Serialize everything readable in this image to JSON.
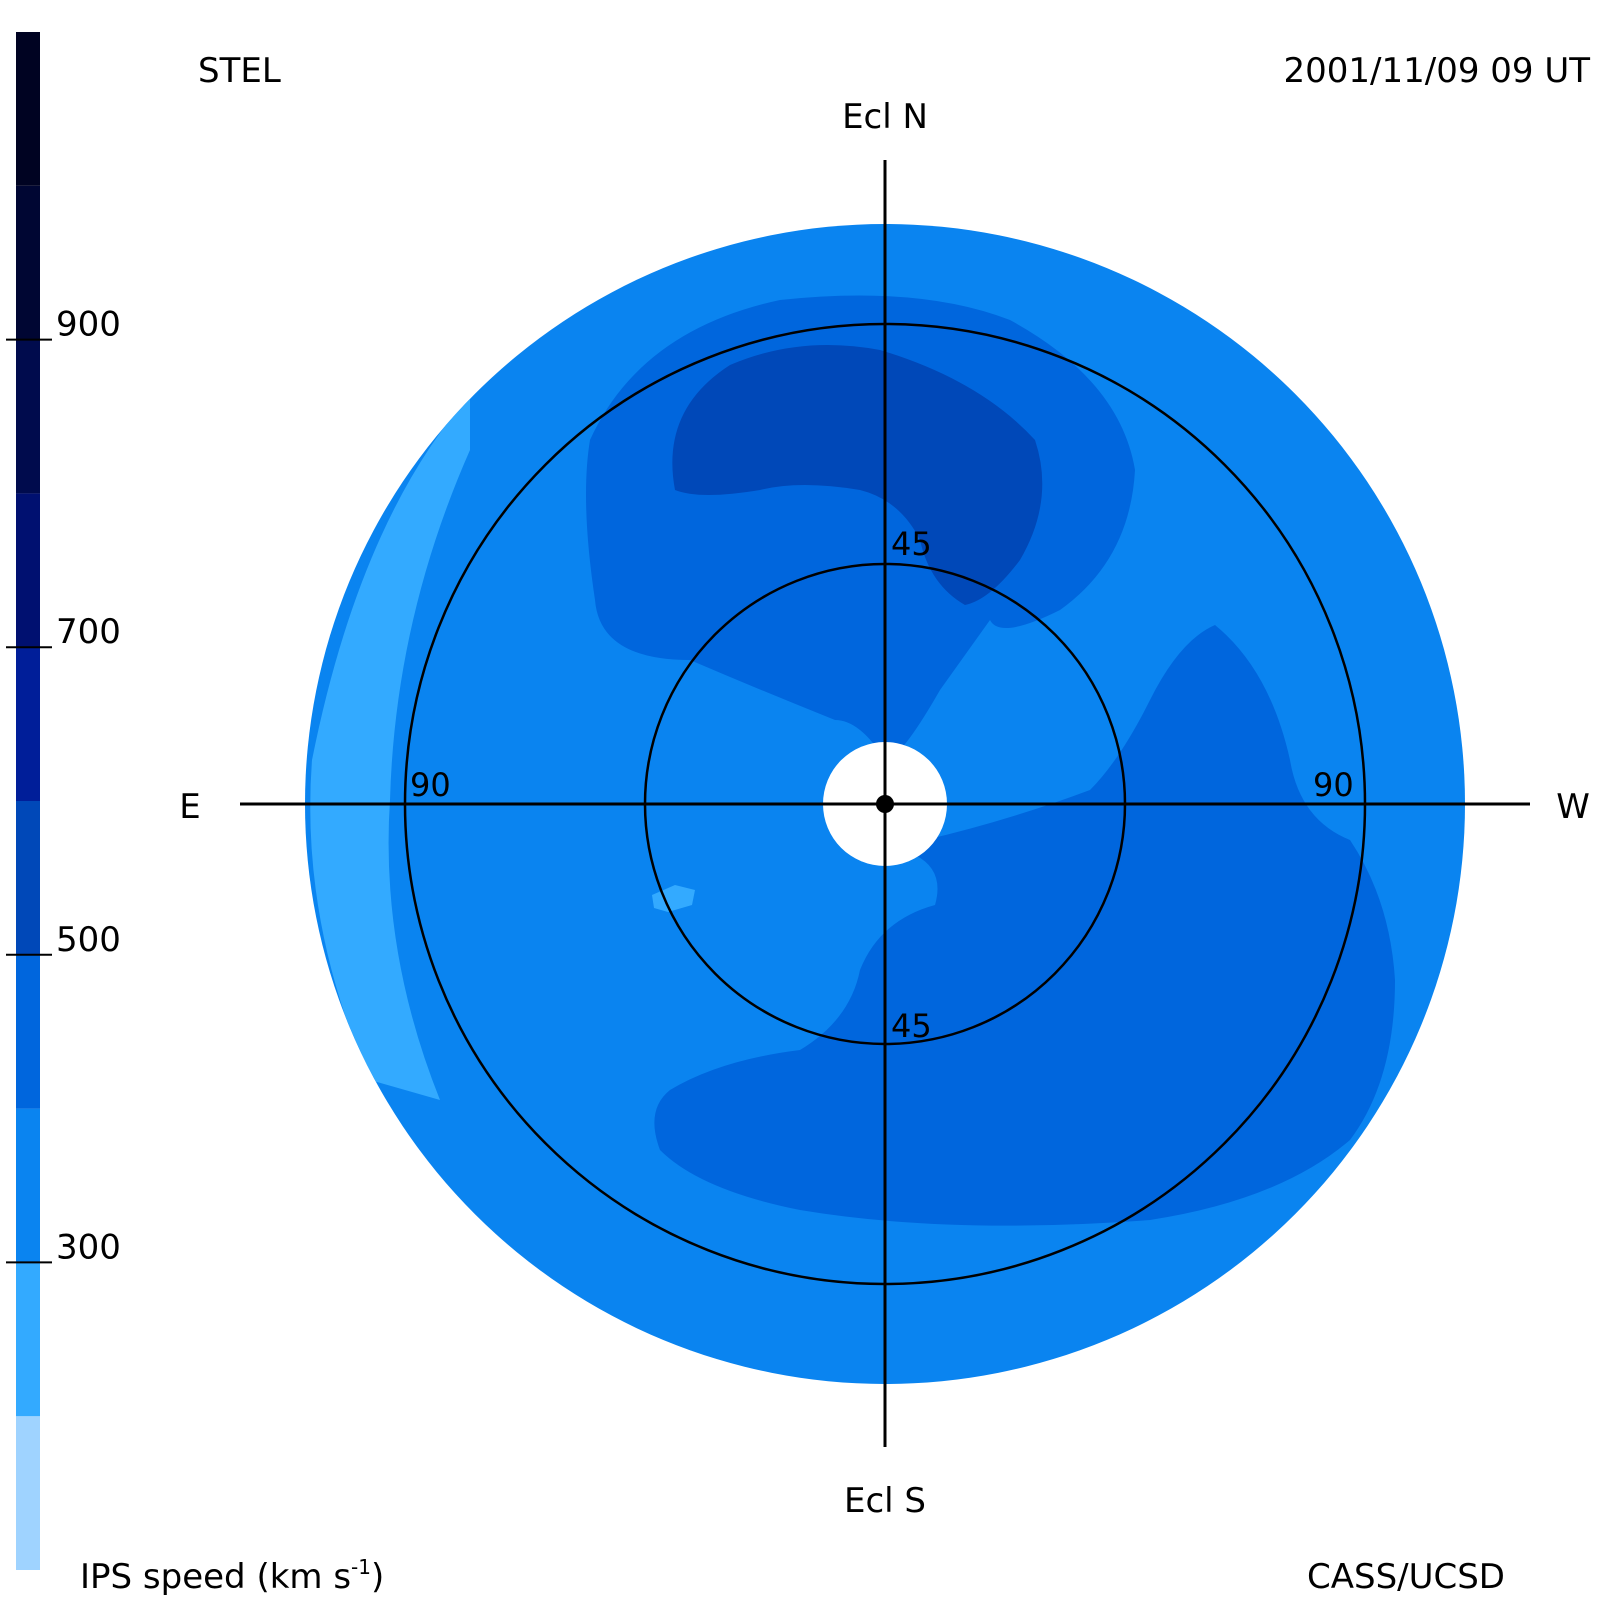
{
  "header": {
    "source": "STEL",
    "timestamp": "2001/11/09 09 UT",
    "credit": "CASS/UCSD"
  },
  "compass": {
    "north": "Ecl N",
    "south": "Ecl S",
    "east": "E",
    "west": "W"
  },
  "colorbar": {
    "label": "IPS speed (km s",
    "label_superscript": "-1",
    "label_close": ")",
    "ticks": [
      "300",
      "500",
      "700",
      "900"
    ],
    "tick_values": [
      300,
      500,
      700,
      900
    ],
    "range": [
      100,
      1100
    ],
    "bands": [
      {
        "from": 100,
        "to": 200,
        "color": "#9fd3ff"
      },
      {
        "from": 200,
        "to": 300,
        "color": "#33aaff"
      },
      {
        "from": 300,
        "to": 400,
        "color": "#0a84f0"
      },
      {
        "from": 400,
        "to": 500,
        "color": "#0066dd"
      },
      {
        "from": 500,
        "to": 600,
        "color": "#0048b8"
      },
      {
        "from": 600,
        "to": 700,
        "color": "#001e99"
      },
      {
        "from": 700,
        "to": 800,
        "color": "#001070"
      },
      {
        "from": 800,
        "to": 900,
        "color": "#000b4d"
      },
      {
        "from": 900,
        "to": 1000,
        "color": "#000633"
      },
      {
        "from": 1000,
        "to": 1100,
        "color": "#000322"
      }
    ]
  },
  "chart_data": {
    "type": "heatmap",
    "projection": "fisheye sky map centered on the Sun",
    "elongation_rings": [
      {
        "value": 45,
        "labels": [
          "45",
          "45"
        ]
      },
      {
        "value": 90,
        "labels": [
          "90",
          "90"
        ]
      }
    ],
    "speed_regions": [
      {
        "speed_band": 200,
        "description": "outer east rim"
      },
      {
        "speed_band": 300,
        "description": "outer disk and central region"
      },
      {
        "speed_band": 400,
        "description": "north arc, south-west lobe"
      },
      {
        "speed_band": 500,
        "description": "north cap"
      }
    ],
    "colors": {
      "disk_outer": "#0a84f0",
      "east_rim": "#33aaff",
      "mid_band": "#0066dd",
      "north_cap": "#0048b8"
    }
  }
}
